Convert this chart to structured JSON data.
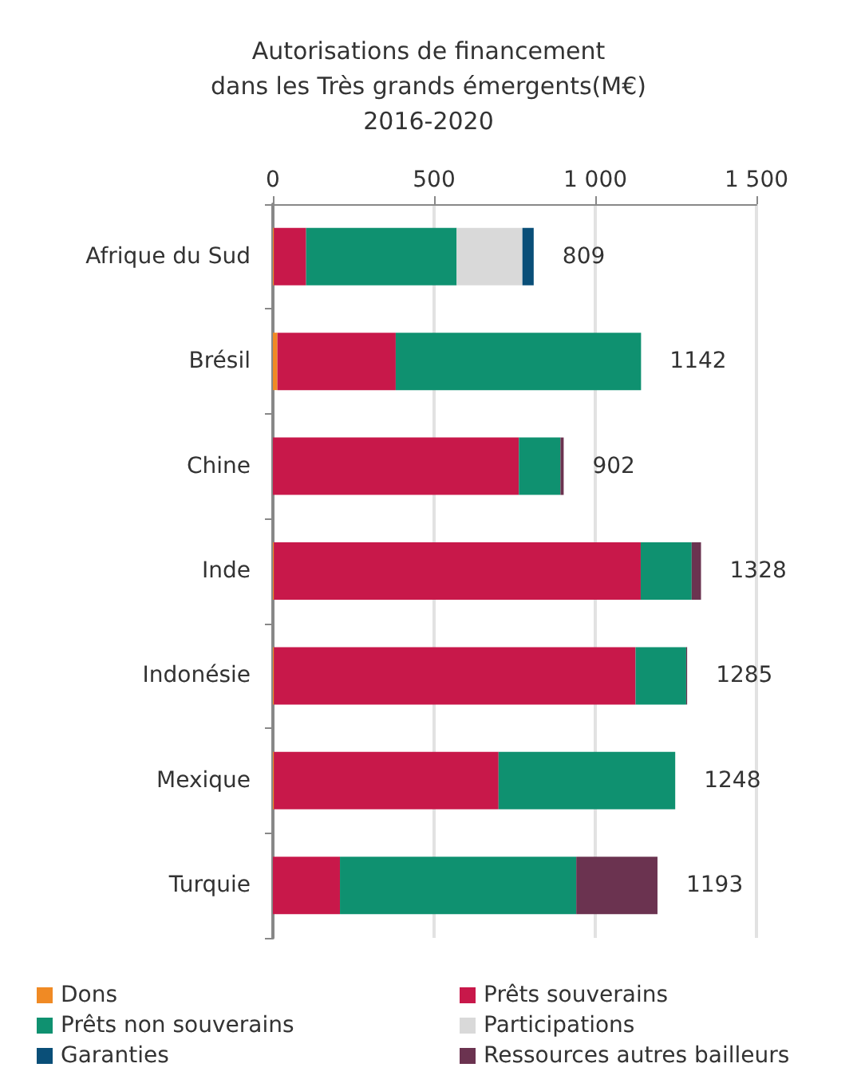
{
  "chart_data": {
    "type": "bar",
    "orientation": "horizontal",
    "stacked": true,
    "title": "Autorisations de financement\ndans les Très grands émergents(M€)\n2016-2020",
    "categories": [
      "Afrique du Sud",
      "Brésil",
      "Chine",
      "Inde",
      "Indonésie",
      "Mexique",
      "Turquie"
    ],
    "series": [
      {
        "name": "Dons",
        "color": "#f08a24",
        "values": [
          3,
          14,
          null,
          3,
          3,
          3,
          null
        ]
      },
      {
        "name": "Prêts souverains",
        "color": "#c8184a",
        "values": [
          100,
          367,
          763,
          1138,
          1122,
          697,
          208
        ]
      },
      {
        "name": "Prêts non souverains",
        "color": "#0f9170",
        "values": [
          467,
          761,
          129,
          158,
          157,
          548,
          733
        ]
      },
      {
        "name": "Participations",
        "color": "#d9d9d9",
        "values": [
          204,
          null,
          null,
          null,
          null,
          null,
          null
        ]
      },
      {
        "name": "Garanties",
        "color": "#0a4f78",
        "values": [
          35,
          null,
          null,
          null,
          null,
          null,
          null
        ]
      },
      {
        "name": "Ressources autres bailleurs",
        "color": "#6b3350",
        "values": [
          null,
          null,
          10,
          29,
          3,
          null,
          252
        ]
      }
    ],
    "totals": [
      "809",
      "1142",
      "902",
      "1328",
      "1285",
      "1248",
      "1193"
    ],
    "xlim": [
      0,
      1500
    ],
    "xticks": [
      0,
      500,
      {
        "value": 1000,
        "label": "1 000"
      },
      {
        "value": 1500,
        "label": "1 500"
      }
    ],
    "grid": "x",
    "legend": "bottom"
  }
}
